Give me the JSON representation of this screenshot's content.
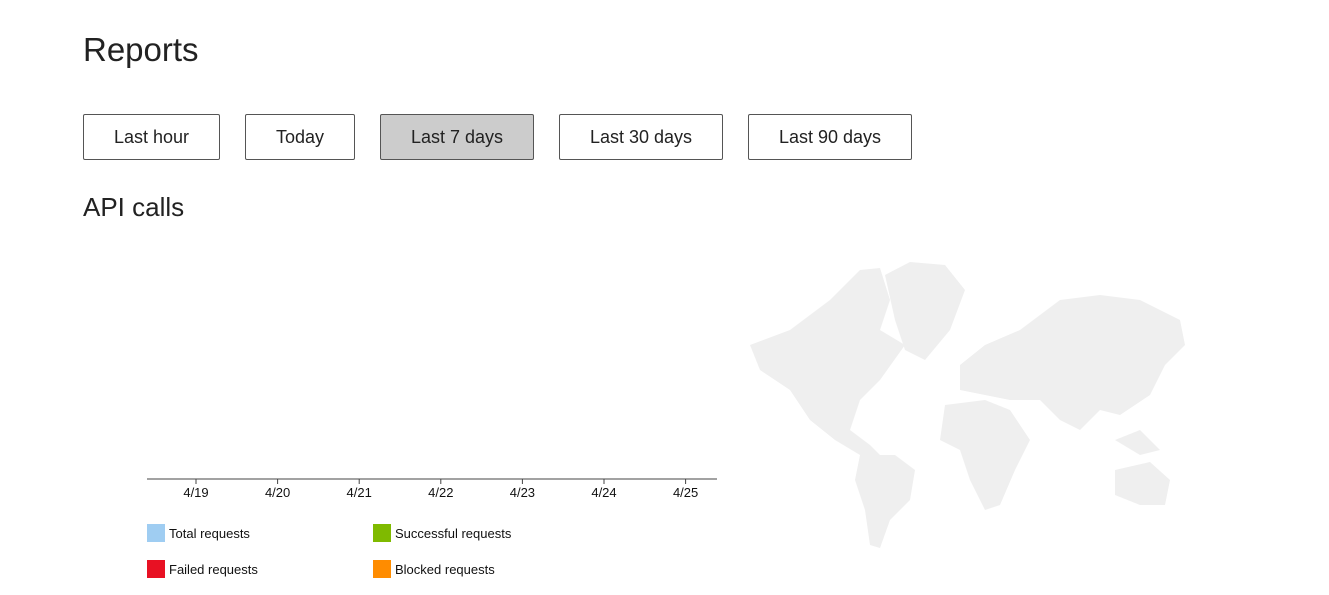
{
  "header": {
    "title": "Reports"
  },
  "buttons": [
    {
      "label": "Last hour",
      "selected": false
    },
    {
      "label": "Today",
      "selected": false
    },
    {
      "label": "Last 7 days",
      "selected": true
    },
    {
      "label": "Last 30 days",
      "selected": false
    },
    {
      "label": "Last 90 days",
      "selected": false
    }
  ],
  "section": {
    "title": "API calls"
  },
  "chart": {
    "x_labels": [
      "4/19",
      "4/20",
      "4/21",
      "4/22",
      "4/23",
      "4/24",
      "4/25"
    ],
    "legend": [
      {
        "name": "Total requests",
        "color": "#9fcdf2"
      },
      {
        "name": "Successful requests",
        "color": "#7fba00"
      },
      {
        "name": "Failed requests",
        "color": "#e81123"
      },
      {
        "name": "Blocked requests",
        "color": "#ff8c00"
      }
    ]
  }
}
